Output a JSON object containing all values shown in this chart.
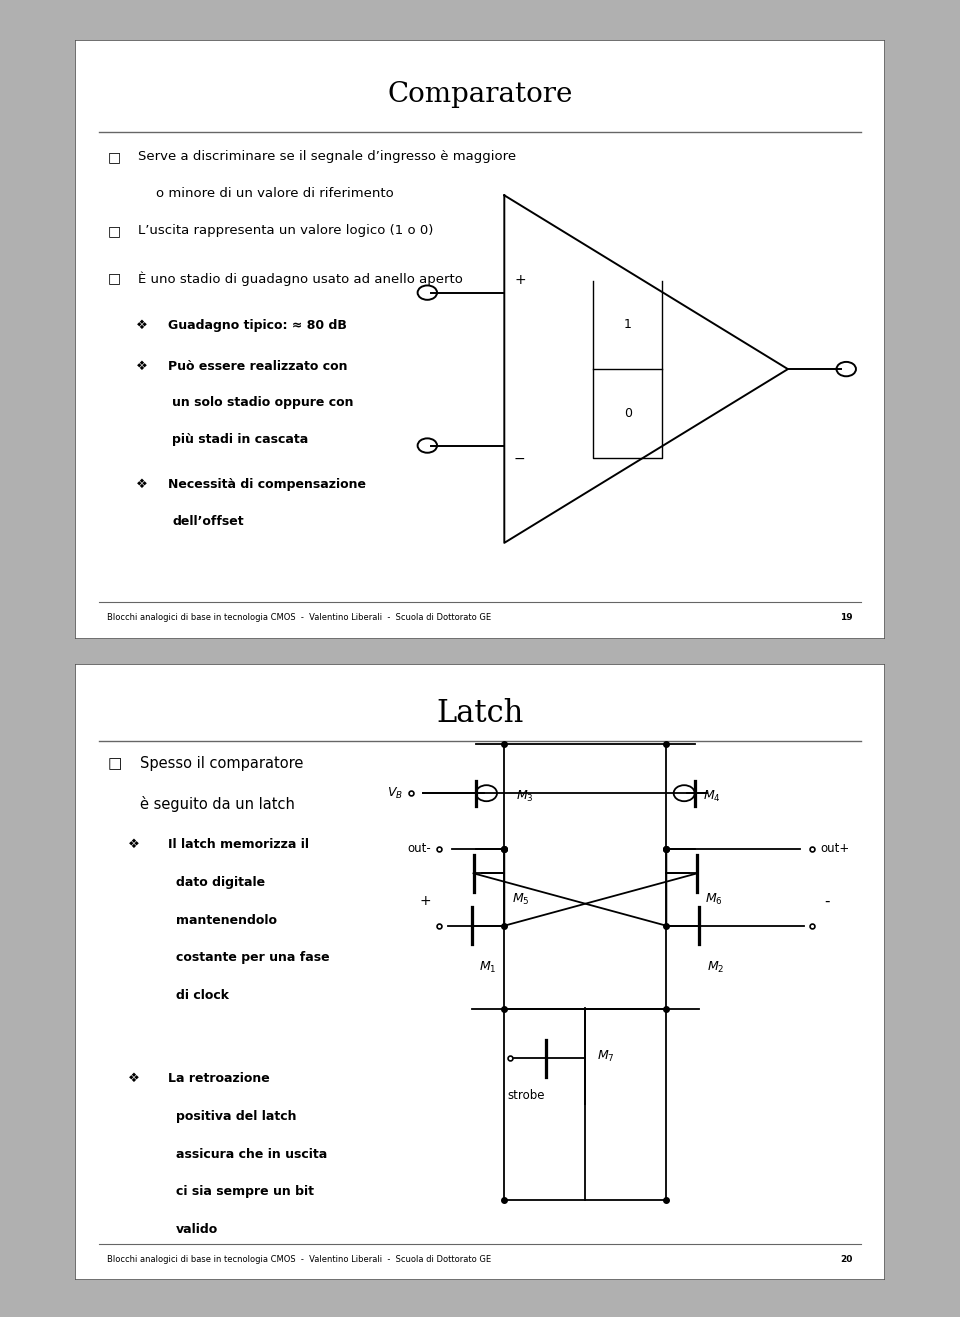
{
  "page_bg": "#b0b0b0",
  "slide_bg": "#ffffff",
  "slide_border": "#555555",
  "text_color": "#000000",
  "slide1": {
    "title": "Comparatore",
    "footer": "Blocchi analogici di base in tecnologia CMOS  -  Valentino Liberali  -  Scuola di Dottorato GE",
    "page_num": "19"
  },
  "slide2": {
    "title": "Latch",
    "footer": "Blocchi analogici di base in tecnologia CMOS  -  Valentino Liberali  -  Scuola di Dottorato GE",
    "page_num": "20"
  }
}
